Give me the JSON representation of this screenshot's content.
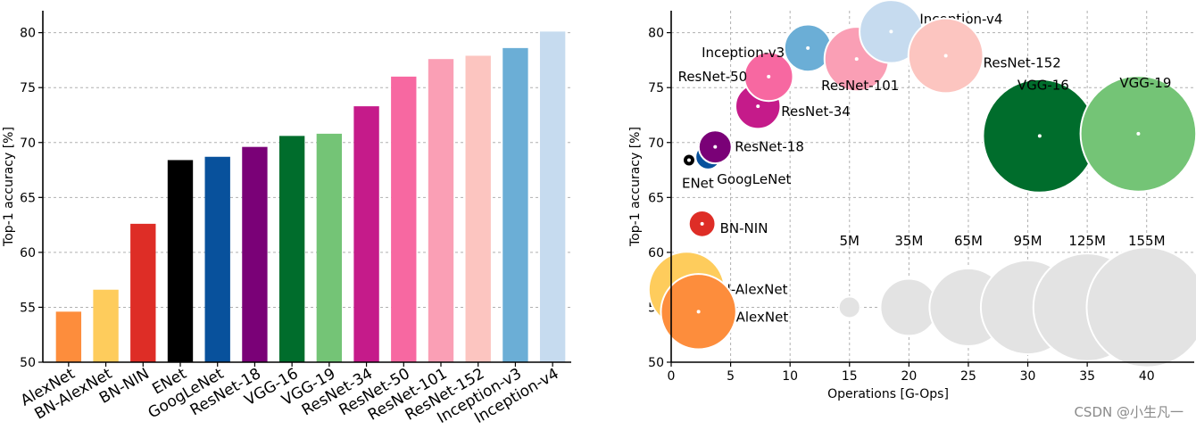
{
  "watermark": "CSDN @小生凡一",
  "chart_data": [
    {
      "type": "bar",
      "ylabel": "Top-1 accuracy [%]",
      "xlabel": "",
      "ylim": [
        50,
        82
      ],
      "yticks": [
        50,
        55,
        60,
        65,
        70,
        75,
        80
      ],
      "grid": true,
      "categories": [
        "AlexNet",
        "BN-AlexNet",
        "BN-NIN",
        "ENet",
        "GoogLeNet",
        "ResNet-18",
        "VGG-16",
        "VGG-19",
        "ResNet-34",
        "ResNet-50",
        "ResNet-101",
        "ResNet-152",
        "Inception-v3",
        "Inception-v4"
      ],
      "values": [
        54.6,
        56.6,
        62.6,
        68.4,
        68.7,
        69.6,
        70.6,
        70.8,
        73.3,
        76.0,
        77.6,
        77.9,
        78.6,
        80.1
      ],
      "colors": [
        "#fd8d3c",
        "#fecc5c",
        "#de2d26",
        "#000000",
        "#08519c",
        "#7a0177",
        "#006d2c",
        "#74c476",
        "#c51b8a",
        "#f768a1",
        "#fa9fb5",
        "#fcc5c0",
        "#6baed6",
        "#c6dbef"
      ]
    },
    {
      "type": "scatter",
      "xlabel": "Operations [G-Ops]",
      "ylabel": "Top-1 accuracy [%]",
      "xlim": [
        0,
        44
      ],
      "ylim": [
        50,
        82
      ],
      "xticks": [
        0,
        5,
        10,
        15,
        20,
        25,
        30,
        35,
        40
      ],
      "yticks": [
        50,
        55,
        60,
        65,
        70,
        75,
        80
      ],
      "grid": true,
      "points": [
        {
          "name": "BN-AlexNet",
          "x": 1.3,
          "y": 56.6,
          "params_M": 62,
          "color": "#fecc5c"
        },
        {
          "name": "AlexNet",
          "x": 2.3,
          "y": 54.6,
          "params_M": 61,
          "color": "#fd8d3c"
        },
        {
          "name": "BN-NIN",
          "x": 2.6,
          "y": 62.6,
          "params_M": 7.6,
          "color": "#de2d26"
        },
        {
          "name": "ENet",
          "x": 1.5,
          "y": 68.4,
          "params_M": 0.4,
          "color": "#000000"
        },
        {
          "name": "GoogLeNet",
          "x": 3.1,
          "y": 68.7,
          "params_M": 6.8,
          "color": "#08519c"
        },
        {
          "name": "ResNet-18",
          "x": 3.7,
          "y": 69.6,
          "params_M": 11.7,
          "color": "#7a0177"
        },
        {
          "name": "ResNet-34",
          "x": 7.3,
          "y": 73.3,
          "params_M": 21.8,
          "color": "#c51b8a"
        },
        {
          "name": "ResNet-50",
          "x": 8.2,
          "y": 76.0,
          "params_M": 25.6,
          "color": "#f768a1"
        },
        {
          "name": "Inception-v3",
          "x": 11.5,
          "y": 78.6,
          "params_M": 23.8,
          "color": "#6baed6"
        },
        {
          "name": "ResNet-101",
          "x": 15.6,
          "y": 77.6,
          "params_M": 44.5,
          "color": "#fa9fb5"
        },
        {
          "name": "Inception-v4",
          "x": 18.5,
          "y": 80.1,
          "params_M": 42.7,
          "color": "#c6dbef"
        },
        {
          "name": "ResNet-152",
          "x": 23.1,
          "y": 77.9,
          "params_M": 60.2,
          "color": "#fcc5c0"
        },
        {
          "name": "VGG-16",
          "x": 31.0,
          "y": 70.6,
          "params_M": 138,
          "color": "#006d2c"
        },
        {
          "name": "VGG-19",
          "x": 39.3,
          "y": 70.8,
          "params_M": 144,
          "color": "#74c476"
        }
      ],
      "size_legend": [
        {
          "label": "5M",
          "params_M": 5,
          "x": 15,
          "y": 55
        },
        {
          "label": "35M",
          "params_M": 35,
          "x": 20,
          "y": 55
        },
        {
          "label": "65M",
          "params_M": 65,
          "x": 25,
          "y": 55
        },
        {
          "label": "95M",
          "params_M": 95,
          "x": 30,
          "y": 55
        },
        {
          "label": "125M",
          "params_M": 125,
          "x": 35,
          "y": 55
        },
        {
          "label": "155M",
          "params_M": 155,
          "x": 40,
          "y": 55
        }
      ],
      "size_legend_color": "#e3e3e3"
    }
  ]
}
